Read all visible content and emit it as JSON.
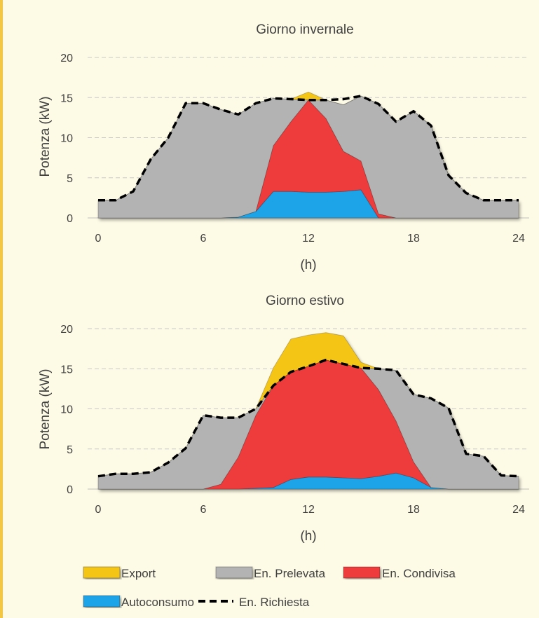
{
  "colors": {
    "background": "#fdfbe6",
    "accent_bar": "#f3c744",
    "export": "#f5c518",
    "prelevata": "#b3b3b3",
    "condivisa": "#ee3b3b",
    "autoconsumo": "#1aa3e8",
    "richiesta": "#000000",
    "grid": "#c8c8c8"
  },
  "legend": [
    {
      "key": "export",
      "label": "Export"
    },
    {
      "key": "prelevata",
      "label": "En. Prelevata"
    },
    {
      "key": "condivisa",
      "label": "En. Condivisa"
    },
    {
      "key": "autoconsumo",
      "label": "Autoconsumo"
    },
    {
      "key": "richiesta",
      "label": "En. Richiesta"
    }
  ],
  "chart_data": [
    {
      "type": "area",
      "title": "Giorno invernale",
      "xlabel": "(h)",
      "ylabel": "Potenza  (kW)",
      "xlim": [
        0,
        24
      ],
      "ylim": [
        0,
        20
      ],
      "xticks": [
        0,
        6,
        12,
        18,
        24
      ],
      "yticks": [
        0,
        5,
        10,
        15,
        20
      ],
      "grid": true,
      "x": [
        0,
        1,
        2,
        3,
        4,
        5,
        6,
        7,
        8,
        9,
        10,
        11,
        12,
        13,
        14,
        15,
        16,
        17,
        18,
        19,
        20,
        21,
        22,
        23,
        24
      ],
      "series": [
        {
          "name": "Autoconsumo",
          "key": "autoconsumo",
          "values": [
            0,
            0,
            0,
            0,
            0,
            0,
            0,
            0,
            0.1,
            0.8,
            3.3,
            3.3,
            3.2,
            3.2,
            3.3,
            3.5,
            0,
            0,
            0,
            0,
            0,
            0,
            0,
            0,
            0
          ]
        },
        {
          "name": "En. Condivisa",
          "key": "condivisa",
          "values": [
            0,
            0,
            0,
            0,
            0,
            0,
            0,
            0,
            0,
            0,
            5.7,
            8.7,
            11.5,
            9.2,
            5,
            3.6,
            0.5,
            0,
            0,
            0,
            0,
            0,
            0,
            0,
            0
          ]
        },
        {
          "name": "En. Prelevata",
          "key": "prelevata",
          "values": [
            2.2,
            2.2,
            3.3,
            7.3,
            10,
            14.3,
            14.3,
            13.5,
            12.8,
            13.5,
            5.9,
            2.8,
            0,
            2.3,
            5.8,
            8.1,
            13.7,
            12,
            13.3,
            11.5,
            5.3,
            3.1,
            2.2,
            2.2,
            2.2
          ]
        },
        {
          "name": "Export",
          "key": "export",
          "values": [
            0,
            0,
            0,
            0,
            0,
            0,
            0,
            0,
            0,
            0,
            0,
            0,
            1,
            0,
            0,
            0,
            0,
            0,
            0,
            0,
            0,
            0,
            0,
            0,
            0
          ]
        }
      ],
      "richiesta": [
        2.2,
        2.2,
        3.3,
        7.3,
        10,
        14.3,
        14.3,
        13.5,
        12.9,
        14.3,
        14.9,
        14.8,
        14.7,
        14.7,
        14.8,
        15.2,
        14.2,
        12,
        13.3,
        11.5,
        5.3,
        3.1,
        2.2,
        2.2,
        2.2
      ]
    },
    {
      "type": "area",
      "title": "Giorno estivo",
      "xlabel": "(h)",
      "ylabel": "Potenza  (kW)",
      "xlim": [
        0,
        24
      ],
      "ylim": [
        0,
        20
      ],
      "xticks": [
        0,
        6,
        12,
        18,
        24
      ],
      "yticks": [
        0,
        5,
        10,
        15,
        20
      ],
      "grid": true,
      "x": [
        0,
        1,
        2,
        3,
        4,
        5,
        6,
        7,
        8,
        9,
        10,
        11,
        12,
        13,
        14,
        15,
        16,
        17,
        18,
        19,
        20,
        21,
        22,
        23,
        24
      ],
      "series": [
        {
          "name": "Autoconsumo",
          "key": "autoconsumo",
          "values": [
            0,
            0,
            0,
            0,
            0,
            0,
            0,
            0,
            0,
            0.1,
            0.2,
            1.2,
            1.5,
            1.5,
            1.4,
            1.3,
            1.6,
            2,
            1.4,
            0.2,
            0,
            0,
            0,
            0,
            0
          ]
        },
        {
          "name": "En. Condivisa",
          "key": "condivisa",
          "values": [
            0,
            0,
            0,
            0,
            0,
            0,
            0,
            0.6,
            4,
            9.1,
            12.7,
            13.4,
            13.8,
            14.6,
            14.2,
            13.8,
            10.8,
            6.5,
            2,
            0,
            0,
            0,
            0,
            0,
            0
          ]
        },
        {
          "name": "En. Prelevata",
          "key": "prelevata",
          "values": [
            1.6,
            1.9,
            1.9,
            2.1,
            3.3,
            5.1,
            9.2,
            8.3,
            4.9,
            0.8,
            0,
            0,
            0,
            0,
            0,
            0,
            2.6,
            6.3,
            8.4,
            11.1,
            10.1,
            4.4,
            4.1,
            1.7,
            1.6
          ]
        },
        {
          "name": "Export",
          "key": "export",
          "values": [
            0,
            0,
            0,
            0,
            0,
            0,
            0,
            0,
            0,
            0,
            2.2,
            4.1,
            3.9,
            3.4,
            3.5,
            0.7,
            0,
            0,
            0,
            0,
            0,
            0,
            0,
            0,
            0
          ]
        }
      ],
      "richiesta": [
        1.6,
        1.9,
        1.9,
        2.1,
        3.3,
        5.1,
        9.2,
        8.9,
        8.9,
        10,
        12.9,
        14.6,
        15.3,
        16.1,
        15.6,
        15.1,
        15,
        14.8,
        11.8,
        11.3,
        10.1,
        4.4,
        4.1,
        1.7,
        1.6
      ]
    }
  ]
}
